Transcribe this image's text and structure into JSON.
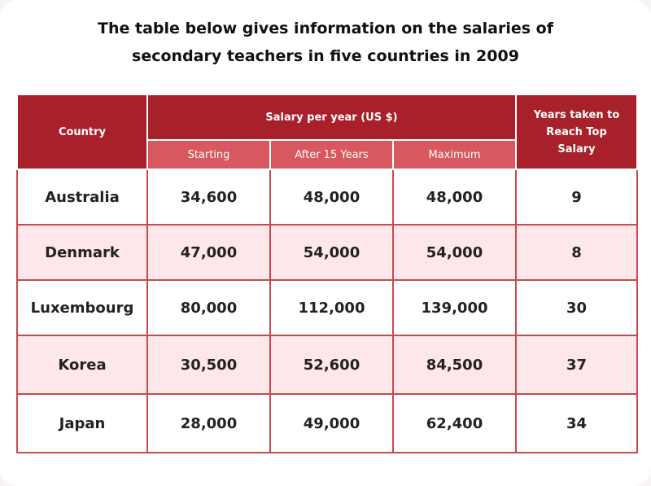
{
  "title_line1": "The table below gives information on the salaries of",
  "title_line2": "secondary teachers in five countries in 2009",
  "colors": {
    "header": "#a8202a",
    "subheader": "#d85860",
    "row_alt": "#fde7e8",
    "row_plain": "#ffffff"
  },
  "headers": {
    "country": "Country",
    "salary_group": "Salary per year (US $)",
    "starting": "Starting",
    "after15": "After 15 Years",
    "maximum": "Maximum",
    "years_line1": "Years taken to",
    "years_line2": "Reach Top",
    "years_line3": "Salary"
  },
  "rows": [
    {
      "country": "Australia",
      "starting": "34,600",
      "after15": "48,000",
      "maximum": "48,000",
      "years": "9"
    },
    {
      "country": "Denmark",
      "starting": "47,000",
      "after15": "54,000",
      "maximum": "54,000",
      "years": "8"
    },
    {
      "country": "Luxembourg",
      "starting": "80,000",
      "after15": "112,000",
      "maximum": "139,000",
      "years": "30"
    },
    {
      "country": "Korea",
      "starting": "30,500",
      "after15": "52,600",
      "maximum": "84,500",
      "years": "37"
    },
    {
      "country": "Japan",
      "starting": "28,000",
      "after15": "49,000",
      "maximum": "62,400",
      "years": "34"
    }
  ],
  "chart_data": {
    "type": "table",
    "title": "The table below gives information on the salaries of secondary teachers in five countries in 2009",
    "columns": [
      "Country",
      "Starting",
      "After 15 Years",
      "Maximum",
      "Years taken to Reach Top Salary"
    ],
    "column_group": "Salary per year (US $)",
    "categories": [
      "Australia",
      "Denmark",
      "Luxembourg",
      "Korea",
      "Japan"
    ],
    "series": [
      {
        "name": "Starting",
        "values": [
          34600,
          47000,
          80000,
          30500,
          28000
        ]
      },
      {
        "name": "After 15 Years",
        "values": [
          48000,
          54000,
          112000,
          52600,
          49000
        ]
      },
      {
        "name": "Maximum",
        "values": [
          48000,
          54000,
          139000,
          84500,
          62400
        ]
      },
      {
        "name": "Years taken to Reach Top Salary",
        "values": [
          9,
          8,
          30,
          37,
          34
        ]
      }
    ]
  }
}
